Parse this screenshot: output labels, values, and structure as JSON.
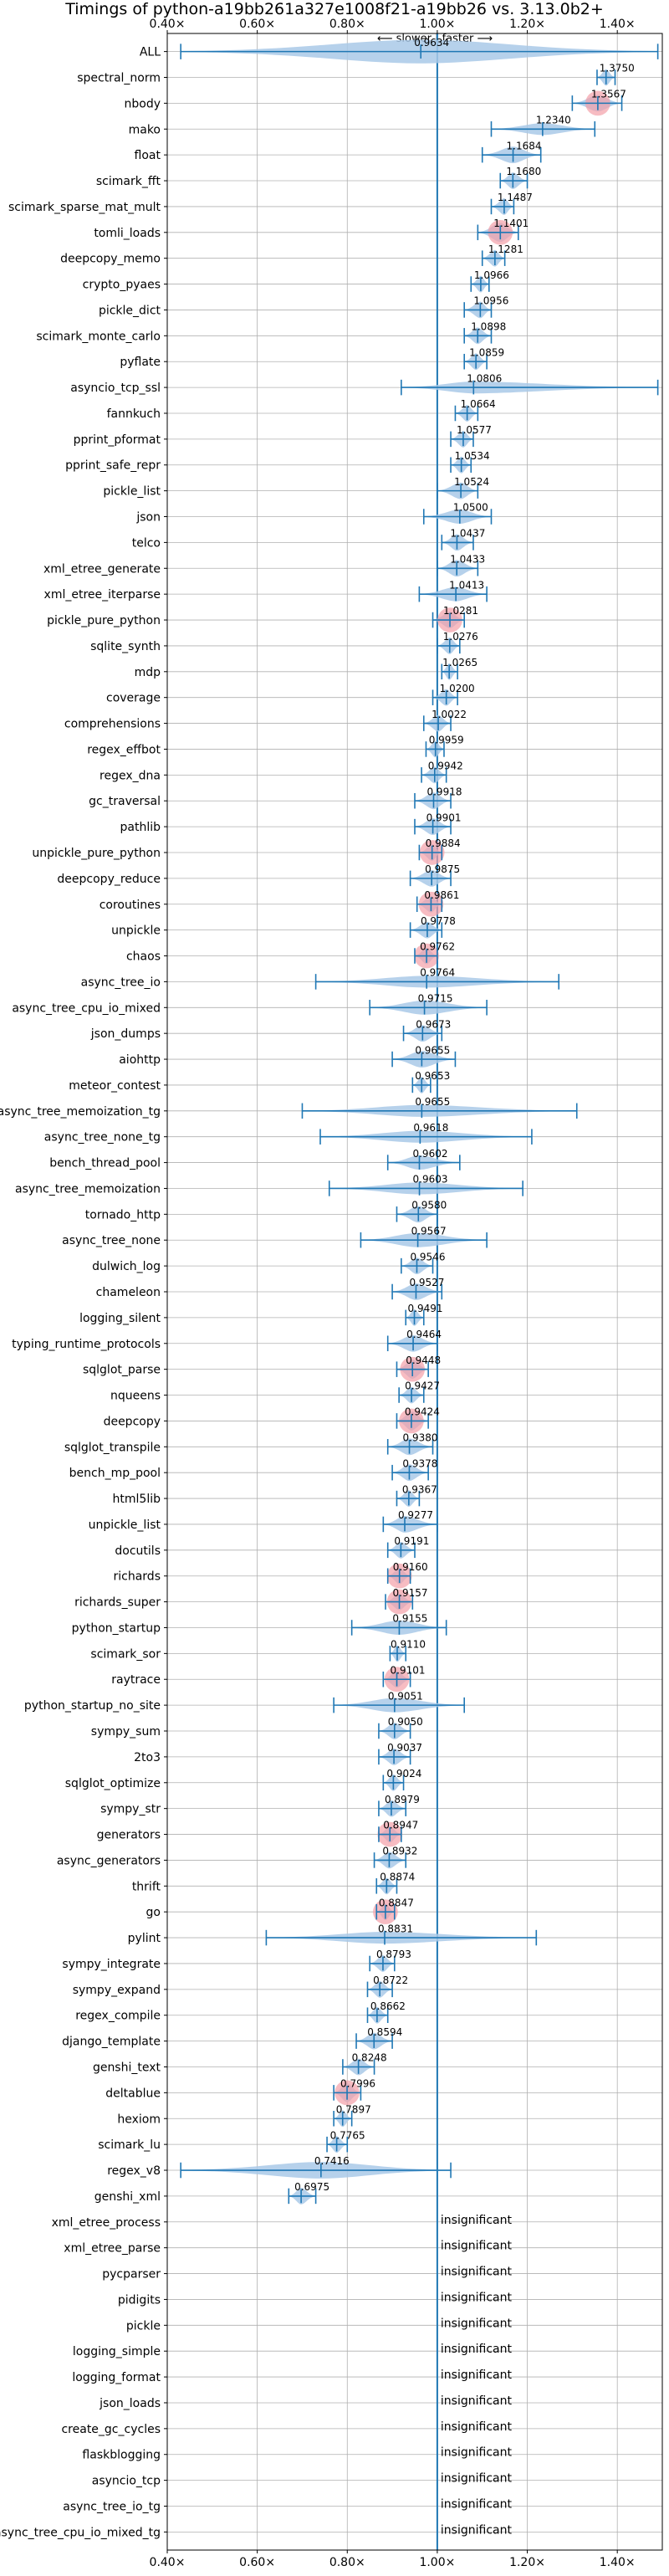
{
  "chart_data": {
    "type": "violin",
    "title": "Timings of python-a19bb261a327e1008f21-a19bb26 vs. 3.13.0b2+",
    "direction_label": "⟵ slower | faster ⟶",
    "xlim": [
      0.4,
      1.5
    ],
    "x_ticks": [
      0.4,
      0.6,
      0.8,
      1.0,
      1.2,
      1.4
    ],
    "x_tick_labels": [
      "0.40×",
      "0.60×",
      "0.80×",
      "1.00×",
      "1.20×",
      "1.40×"
    ],
    "reference_line": 1.0,
    "insignificant_label": "insignificant",
    "colors": {
      "violin": "#a9c9e8",
      "line": "#1f77b4",
      "highlight": "#f3a0a8",
      "grid": "#b0b0b0"
    },
    "benchmarks": [
      {
        "name": "ALL",
        "value": "0.9634",
        "center": 0.9634,
        "min": 0.43,
        "max": 1.49,
        "width": 1.0,
        "hl": false
      },
      {
        "name": "spectral_norm",
        "value": "1.3750",
        "center": 1.375,
        "min": 1.355,
        "max": 1.395,
        "width": 0.7,
        "hl": false
      },
      {
        "name": "nbody",
        "value": "1.3567",
        "center": 1.3567,
        "min": 1.3,
        "max": 1.41,
        "width": 0.7,
        "hl": true
      },
      {
        "name": "mako",
        "value": "1.2340",
        "center": 1.234,
        "min": 1.12,
        "max": 1.35,
        "width": 0.5,
        "hl": false
      },
      {
        "name": "float",
        "value": "1.1684",
        "center": 1.1684,
        "min": 1.1,
        "max": 1.23,
        "width": 0.7,
        "hl": false
      },
      {
        "name": "scimark_fft",
        "value": "1.1680",
        "center": 1.168,
        "min": 1.14,
        "max": 1.2,
        "width": 0.7,
        "hl": false
      },
      {
        "name": "scimark_sparse_mat_mult",
        "value": "1.1487",
        "center": 1.1487,
        "min": 1.12,
        "max": 1.17,
        "width": 0.7,
        "hl": false
      },
      {
        "name": "tomli_loads",
        "value": "1.1401",
        "center": 1.1401,
        "min": 1.09,
        "max": 1.18,
        "width": 0.8,
        "hl": true
      },
      {
        "name": "deepcopy_memo",
        "value": "1.1281",
        "center": 1.1281,
        "min": 1.1,
        "max": 1.15,
        "width": 0.7,
        "hl": false
      },
      {
        "name": "crypto_pyaes",
        "value": "1.0966",
        "center": 1.0966,
        "min": 1.075,
        "max": 1.115,
        "width": 0.7,
        "hl": false
      },
      {
        "name": "pickle_dict",
        "value": "1.0956",
        "center": 1.0956,
        "min": 1.06,
        "max": 1.12,
        "width": 0.7,
        "hl": false
      },
      {
        "name": "scimark_monte_carlo",
        "value": "1.0898",
        "center": 1.0898,
        "min": 1.06,
        "max": 1.12,
        "width": 0.7,
        "hl": false
      },
      {
        "name": "pyflate",
        "value": "1.0859",
        "center": 1.0859,
        "min": 1.06,
        "max": 1.11,
        "width": 0.7,
        "hl": false
      },
      {
        "name": "asyncio_tcp_ssl",
        "value": "1.0806",
        "center": 1.0806,
        "min": 0.92,
        "max": 1.49,
        "width": 0.5,
        "hl": false
      },
      {
        "name": "fannkuch",
        "value": "1.0664",
        "center": 1.0664,
        "min": 1.04,
        "max": 1.09,
        "width": 0.7,
        "hl": false
      },
      {
        "name": "pprint_pformat",
        "value": "1.0577",
        "center": 1.0577,
        "min": 1.03,
        "max": 1.08,
        "width": 0.7,
        "hl": false
      },
      {
        "name": "pprint_safe_repr",
        "value": "1.0534",
        "center": 1.0534,
        "min": 1.03,
        "max": 1.075,
        "width": 0.7,
        "hl": false
      },
      {
        "name": "pickle_list",
        "value": "1.0524",
        "center": 1.0524,
        "min": 1.0,
        "max": 1.09,
        "width": 0.7,
        "hl": false
      },
      {
        "name": "json",
        "value": "1.0500",
        "center": 1.05,
        "min": 0.97,
        "max": 1.12,
        "width": 0.6,
        "hl": false
      },
      {
        "name": "telco",
        "value": "1.0437",
        "center": 1.0437,
        "min": 1.01,
        "max": 1.08,
        "width": 0.7,
        "hl": false
      },
      {
        "name": "xml_etree_generate",
        "value": "1.0433",
        "center": 1.0433,
        "min": 1.0,
        "max": 1.09,
        "width": 0.7,
        "hl": false
      },
      {
        "name": "xml_etree_iterparse",
        "value": "1.0413",
        "center": 1.0413,
        "min": 0.96,
        "max": 1.11,
        "width": 0.6,
        "hl": false
      },
      {
        "name": "pickle_pure_python",
        "value": "1.0281",
        "center": 1.0281,
        "min": 0.99,
        "max": 1.06,
        "width": 0.7,
        "hl": true
      },
      {
        "name": "sqlite_synth",
        "value": "1.0276",
        "center": 1.0276,
        "min": 1.0,
        "max": 1.05,
        "width": 0.7,
        "hl": false
      },
      {
        "name": "mdp",
        "value": "1.0265",
        "center": 1.0265,
        "min": 1.01,
        "max": 1.045,
        "width": 0.7,
        "hl": false
      },
      {
        "name": "coverage",
        "value": "1.0200",
        "center": 1.02,
        "min": 0.99,
        "max": 1.045,
        "width": 0.7,
        "hl": false
      },
      {
        "name": "comprehensions",
        "value": "1.0022",
        "center": 1.0022,
        "min": 0.97,
        "max": 1.03,
        "width": 0.7,
        "hl": false
      },
      {
        "name": "regex_effbot",
        "value": "0.9959",
        "center": 0.9959,
        "min": 0.975,
        "max": 1.015,
        "width": 0.7,
        "hl": false
      },
      {
        "name": "regex_dna",
        "value": "0.9942",
        "center": 0.9942,
        "min": 0.965,
        "max": 1.02,
        "width": 0.7,
        "hl": false
      },
      {
        "name": "gc_traversal",
        "value": "0.9918",
        "center": 0.9918,
        "min": 0.95,
        "max": 1.03,
        "width": 0.7,
        "hl": false
      },
      {
        "name": "pathlib",
        "value": "0.9901",
        "center": 0.9901,
        "min": 0.95,
        "max": 1.03,
        "width": 0.7,
        "hl": false
      },
      {
        "name": "unpickle_pure_python",
        "value": "0.9884",
        "center": 0.9884,
        "min": 0.96,
        "max": 1.01,
        "width": 0.7,
        "hl": true
      },
      {
        "name": "deepcopy_reduce",
        "value": "0.9875",
        "center": 0.9875,
        "min": 0.94,
        "max": 1.03,
        "width": 0.7,
        "hl": false
      },
      {
        "name": "coroutines",
        "value": "0.9861",
        "center": 0.9861,
        "min": 0.955,
        "max": 1.01,
        "width": 0.7,
        "hl": true
      },
      {
        "name": "unpickle",
        "value": "0.9778",
        "center": 0.9778,
        "min": 0.94,
        "max": 1.01,
        "width": 0.7,
        "hl": false
      },
      {
        "name": "chaos",
        "value": "0.9762",
        "center": 0.9762,
        "min": 0.95,
        "max": 1.0,
        "width": 0.7,
        "hl": true
      },
      {
        "name": "async_tree_io",
        "value": "0.9764",
        "center": 0.9764,
        "min": 0.73,
        "max": 1.27,
        "width": 0.5,
        "hl": false
      },
      {
        "name": "async_tree_cpu_io_mixed",
        "value": "0.9715",
        "center": 0.9715,
        "min": 0.85,
        "max": 1.11,
        "width": 0.6,
        "hl": false
      },
      {
        "name": "json_dumps",
        "value": "0.9673",
        "center": 0.9673,
        "min": 0.925,
        "max": 1.01,
        "width": 0.7,
        "hl": false
      },
      {
        "name": "aiohttp",
        "value": "0.9655",
        "center": 0.9655,
        "min": 0.9,
        "max": 1.04,
        "width": 0.7,
        "hl": false
      },
      {
        "name": "meteor_contest",
        "value": "0.9653",
        "center": 0.9653,
        "min": 0.945,
        "max": 0.985,
        "width": 0.7,
        "hl": false
      },
      {
        "name": "async_tree_memoization_tg",
        "value": "0.9655",
        "center": 0.9655,
        "min": 0.7,
        "max": 1.31,
        "width": 0.5,
        "hl": false
      },
      {
        "name": "async_tree_none_tg",
        "value": "0.9618",
        "center": 0.9618,
        "min": 0.74,
        "max": 1.21,
        "width": 0.5,
        "hl": false
      },
      {
        "name": "bench_thread_pool",
        "value": "0.9602",
        "center": 0.9602,
        "min": 0.89,
        "max": 1.05,
        "width": 0.6,
        "hl": false
      },
      {
        "name": "async_tree_memoization",
        "value": "0.9603",
        "center": 0.9603,
        "min": 0.76,
        "max": 1.19,
        "width": 0.5,
        "hl": false
      },
      {
        "name": "tornado_http",
        "value": "0.9580",
        "center": 0.958,
        "min": 0.91,
        "max": 1.0,
        "width": 0.7,
        "hl": false
      },
      {
        "name": "async_tree_none",
        "value": "0.9567",
        "center": 0.9567,
        "min": 0.83,
        "max": 1.11,
        "width": 0.6,
        "hl": false
      },
      {
        "name": "dulwich_log",
        "value": "0.9546",
        "center": 0.9546,
        "min": 0.92,
        "max": 0.99,
        "width": 0.7,
        "hl": false
      },
      {
        "name": "chameleon",
        "value": "0.9527",
        "center": 0.9527,
        "min": 0.9,
        "max": 1.01,
        "width": 0.7,
        "hl": false
      },
      {
        "name": "logging_silent",
        "value": "0.9491",
        "center": 0.9491,
        "min": 0.93,
        "max": 0.97,
        "width": 0.7,
        "hl": false
      },
      {
        "name": "typing_runtime_protocols",
        "value": "0.9464",
        "center": 0.9464,
        "min": 0.89,
        "max": 1.0,
        "width": 0.7,
        "hl": false
      },
      {
        "name": "sqlglot_parse",
        "value": "0.9448",
        "center": 0.9448,
        "min": 0.91,
        "max": 0.98,
        "width": 0.8,
        "hl": true
      },
      {
        "name": "nqueens",
        "value": "0.9427",
        "center": 0.9427,
        "min": 0.915,
        "max": 0.97,
        "width": 0.7,
        "hl": false
      },
      {
        "name": "deepcopy",
        "value": "0.9424",
        "center": 0.9424,
        "min": 0.91,
        "max": 0.98,
        "width": 0.8,
        "hl": true
      },
      {
        "name": "sqlglot_transpile",
        "value": "0.9380",
        "center": 0.938,
        "min": 0.89,
        "max": 0.99,
        "width": 0.7,
        "hl": false
      },
      {
        "name": "bench_mp_pool",
        "value": "0.9378",
        "center": 0.9378,
        "min": 0.9,
        "max": 0.98,
        "width": 0.7,
        "hl": false
      },
      {
        "name": "html5lib",
        "value": "0.9367",
        "center": 0.9367,
        "min": 0.91,
        "max": 0.96,
        "width": 0.7,
        "hl": false
      },
      {
        "name": "unpickle_list",
        "value": "0.9277",
        "center": 0.9277,
        "min": 0.88,
        "max": 1.0,
        "width": 0.7,
        "hl": false
      },
      {
        "name": "docutils",
        "value": "0.9191",
        "center": 0.9191,
        "min": 0.89,
        "max": 0.95,
        "width": 0.7,
        "hl": false
      },
      {
        "name": "richards",
        "value": "0.9160",
        "center": 0.916,
        "min": 0.89,
        "max": 0.94,
        "width": 0.7,
        "hl": true
      },
      {
        "name": "richards_super",
        "value": "0.9157",
        "center": 0.9157,
        "min": 0.885,
        "max": 0.945,
        "width": 0.7,
        "hl": true
      },
      {
        "name": "python_startup",
        "value": "0.9155",
        "center": 0.9155,
        "min": 0.81,
        "max": 1.02,
        "width": 0.6,
        "hl": false
      },
      {
        "name": "scimark_sor",
        "value": "0.9110",
        "center": 0.911,
        "min": 0.895,
        "max": 0.93,
        "width": 0.7,
        "hl": false
      },
      {
        "name": "raytrace",
        "value": "0.9101",
        "center": 0.9101,
        "min": 0.88,
        "max": 0.94,
        "width": 0.7,
        "hl": true
      },
      {
        "name": "python_startup_no_site",
        "value": "0.9051",
        "center": 0.9051,
        "min": 0.77,
        "max": 1.06,
        "width": 0.6,
        "hl": false
      },
      {
        "name": "sympy_sum",
        "value": "0.9050",
        "center": 0.905,
        "min": 0.87,
        "max": 0.94,
        "width": 0.7,
        "hl": false
      },
      {
        "name": "2to3",
        "value": "0.9037",
        "center": 0.9037,
        "min": 0.87,
        "max": 0.94,
        "width": 0.7,
        "hl": false
      },
      {
        "name": "sqlglot_optimize",
        "value": "0.9024",
        "center": 0.9024,
        "min": 0.88,
        "max": 0.925,
        "width": 0.7,
        "hl": false
      },
      {
        "name": "sympy_str",
        "value": "0.8979",
        "center": 0.8979,
        "min": 0.87,
        "max": 0.93,
        "width": 0.7,
        "hl": false
      },
      {
        "name": "generators",
        "value": "0.8947",
        "center": 0.8947,
        "min": 0.87,
        "max": 0.92,
        "width": 0.7,
        "hl": true
      },
      {
        "name": "async_generators",
        "value": "0.8932",
        "center": 0.8932,
        "min": 0.86,
        "max": 0.93,
        "width": 0.7,
        "hl": false
      },
      {
        "name": "thrift",
        "value": "0.8874",
        "center": 0.8874,
        "min": 0.865,
        "max": 0.91,
        "width": 0.7,
        "hl": false
      },
      {
        "name": "go",
        "value": "0.8847",
        "center": 0.8847,
        "min": 0.865,
        "max": 0.905,
        "width": 0.7,
        "hl": true
      },
      {
        "name": "pylint",
        "value": "0.8831",
        "center": 0.8831,
        "min": 0.62,
        "max": 1.22,
        "width": 0.5,
        "hl": false
      },
      {
        "name": "sympy_integrate",
        "value": "0.8793",
        "center": 0.8793,
        "min": 0.85,
        "max": 0.905,
        "width": 0.7,
        "hl": false
      },
      {
        "name": "sympy_expand",
        "value": "0.8722",
        "center": 0.8722,
        "min": 0.845,
        "max": 0.9,
        "width": 0.7,
        "hl": false
      },
      {
        "name": "regex_compile",
        "value": "0.8662",
        "center": 0.8662,
        "min": 0.845,
        "max": 0.89,
        "width": 0.7,
        "hl": false
      },
      {
        "name": "django_template",
        "value": "0.8594",
        "center": 0.8594,
        "min": 0.82,
        "max": 0.9,
        "width": 0.7,
        "hl": false
      },
      {
        "name": "genshi_text",
        "value": "0.8248",
        "center": 0.8248,
        "min": 0.79,
        "max": 0.86,
        "width": 0.7,
        "hl": false
      },
      {
        "name": "deltablue",
        "value": "0.7996",
        "center": 0.7996,
        "min": 0.77,
        "max": 0.83,
        "width": 0.8,
        "hl": true
      },
      {
        "name": "hexiom",
        "value": "0.7897",
        "center": 0.7897,
        "min": 0.77,
        "max": 0.81,
        "width": 0.7,
        "hl": false
      },
      {
        "name": "scimark_lu",
        "value": "0.7765",
        "center": 0.7765,
        "min": 0.755,
        "max": 0.8,
        "width": 0.7,
        "hl": false
      },
      {
        "name": "regex_v8",
        "value": "0.7416",
        "center": 0.7416,
        "min": 0.43,
        "max": 1.03,
        "width": 0.7,
        "hl": false
      },
      {
        "name": "genshi_xml",
        "value": "0.6975",
        "center": 0.6975,
        "min": 0.67,
        "max": 0.73,
        "width": 0.7,
        "hl": false
      },
      {
        "name": "xml_etree_process",
        "insignificant": true
      },
      {
        "name": "xml_etree_parse",
        "insignificant": true
      },
      {
        "name": "pycparser",
        "insignificant": true
      },
      {
        "name": "pidigits",
        "insignificant": true
      },
      {
        "name": "pickle",
        "insignificant": true
      },
      {
        "name": "logging_simple",
        "insignificant": true
      },
      {
        "name": "logging_format",
        "insignificant": true
      },
      {
        "name": "json_loads",
        "insignificant": true
      },
      {
        "name": "create_gc_cycles",
        "insignificant": true
      },
      {
        "name": "flaskblogging",
        "insignificant": true
      },
      {
        "name": "asyncio_tcp",
        "insignificant": true
      },
      {
        "name": "async_tree_io_tg",
        "insignificant": true
      },
      {
        "name": "async_tree_cpu_io_mixed_tg",
        "insignificant": true
      }
    ]
  }
}
